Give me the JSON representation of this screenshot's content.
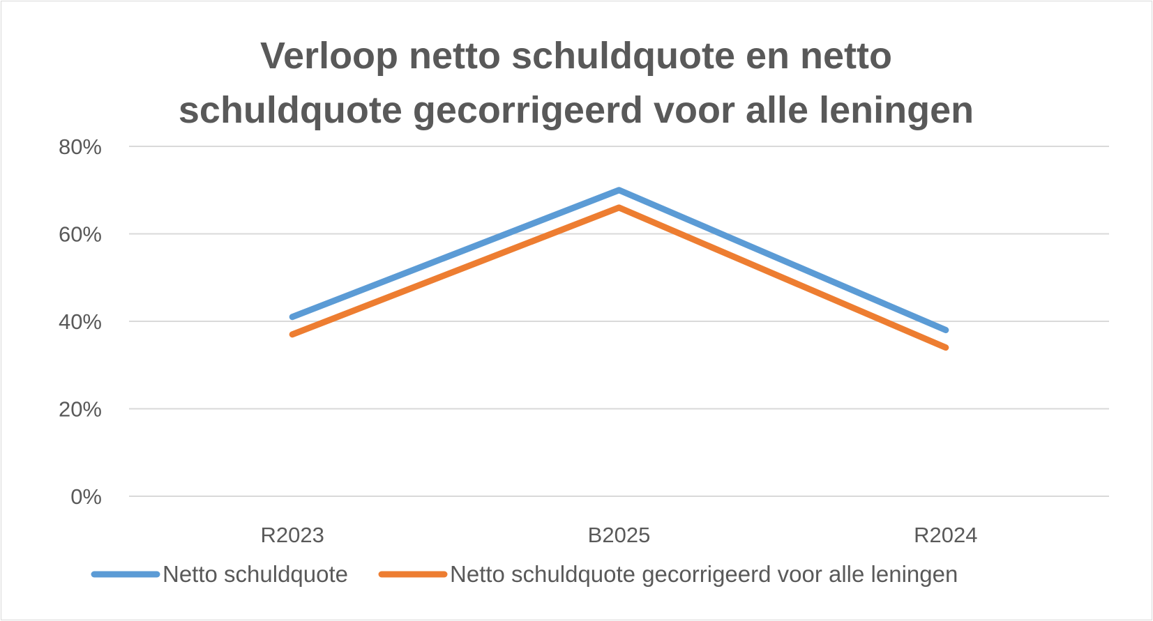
{
  "chart_data": {
    "type": "line",
    "title_lines": [
      "Verloop netto schuldquote en netto",
      "schuldquote gecorrigeerd voor alle leningen"
    ],
    "categories": [
      "R2023",
      "B2025",
      "R2024"
    ],
    "series": [
      {
        "name": "Netto schuldquote",
        "values": [
          41,
          70,
          38
        ],
        "color": "#5b9bd5"
      },
      {
        "name": "Netto schuldquote gecorrigeerd voor alle leningen",
        "values": [
          37,
          66,
          34
        ],
        "color": "#ed7d31"
      }
    ],
    "y_ticks": [
      "0%",
      "20%",
      "40%",
      "60%",
      "80%"
    ],
    "y_tick_values": [
      0,
      20,
      40,
      60,
      80
    ],
    "ylim": [
      0,
      80
    ],
    "y_unit": "%",
    "xlabel": "",
    "ylabel": "",
    "grid": true,
    "gridline_color": "#d9d9d9",
    "legend_position": "bottom"
  }
}
